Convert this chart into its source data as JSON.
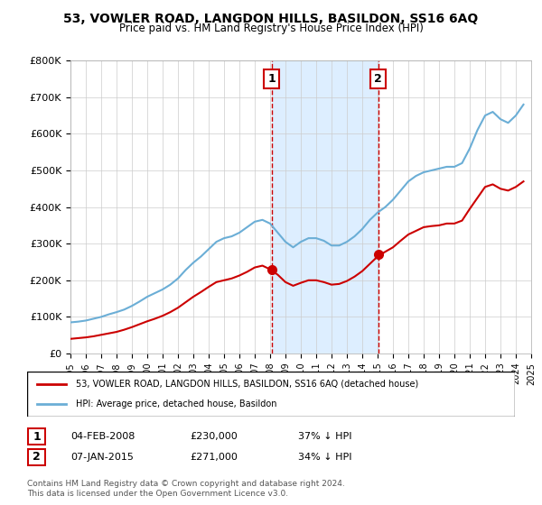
{
  "title": "53, VOWLER ROAD, LANGDON HILLS, BASILDON, SS16 6AQ",
  "subtitle": "Price paid vs. HM Land Registry's House Price Index (HPI)",
  "legend_line1": "53, VOWLER ROAD, LANGDON HILLS, BASILDON, SS16 6AQ (detached house)",
  "legend_line2": "HPI: Average price, detached house, Basildon",
  "transaction1": {
    "label": "1",
    "date": "04-FEB-2008",
    "price": "£230,000",
    "pct": "37% ↓ HPI"
  },
  "transaction2": {
    "label": "2",
    "date": "07-JAN-2015",
    "price": "£271,000",
    "pct": "34% ↓ HPI"
  },
  "footer": "Contains HM Land Registry data © Crown copyright and database right 2024.\nThis data is licensed under the Open Government Licence v3.0.",
  "hpi_color": "#6baed6",
  "price_color": "#cc0000",
  "shaded_color": "#ddeeff",
  "marker1_x": 2008.09,
  "marker2_x": 2015.03,
  "ylim": [
    0,
    800000
  ],
  "xlim_start": 1995,
  "xlim_end": 2025,
  "hpi_data": {
    "years": [
      1995,
      1995.5,
      1996,
      1996.5,
      1997,
      1997.5,
      1998,
      1998.5,
      1999,
      1999.5,
      2000,
      2000.5,
      2001,
      2001.5,
      2002,
      2002.5,
      2003,
      2003.5,
      2004,
      2004.5,
      2005,
      2005.5,
      2006,
      2006.5,
      2007,
      2007.5,
      2008,
      2008.5,
      2009,
      2009.5,
      2010,
      2010.5,
      2011,
      2011.5,
      2012,
      2012.5,
      2013,
      2013.5,
      2014,
      2014.5,
      2015,
      2015.5,
      2016,
      2016.5,
      2017,
      2017.5,
      2018,
      2018.5,
      2019,
      2019.5,
      2020,
      2020.5,
      2021,
      2021.5,
      2022,
      2022.5,
      2023,
      2023.5,
      2024,
      2024.5
    ],
    "values": [
      85000,
      87000,
      90000,
      95000,
      100000,
      107000,
      113000,
      120000,
      130000,
      142000,
      155000,
      165000,
      175000,
      188000,
      205000,
      228000,
      248000,
      265000,
      285000,
      305000,
      315000,
      320000,
      330000,
      345000,
      360000,
      365000,
      355000,
      330000,
      305000,
      290000,
      305000,
      315000,
      315000,
      308000,
      295000,
      295000,
      305000,
      320000,
      340000,
      365000,
      385000,
      400000,
      420000,
      445000,
      470000,
      485000,
      495000,
      500000,
      505000,
      510000,
      510000,
      520000,
      560000,
      610000,
      650000,
      660000,
      640000,
      630000,
      650000,
      680000
    ]
  },
  "price_data": {
    "years": [
      1995,
      1995.5,
      1996,
      1996.5,
      1997,
      1997.5,
      1998,
      1998.5,
      1999,
      1999.5,
      2000,
      2000.5,
      2001,
      2001.5,
      2002,
      2002.5,
      2003,
      2003.5,
      2004,
      2004.5,
      2005,
      2005.5,
      2006,
      2006.5,
      2007,
      2007.5,
      2008,
      2008.5,
      2009,
      2009.5,
      2010,
      2010.5,
      2011,
      2011.5,
      2012,
      2012.5,
      2013,
      2013.5,
      2014,
      2014.5,
      2015,
      2015.5,
      2016,
      2016.5,
      2017,
      2017.5,
      2018,
      2018.5,
      2019,
      2019.5,
      2020,
      2020.5,
      2021,
      2021.5,
      2022,
      2022.5,
      2023,
      2023.5,
      2024,
      2024.5
    ],
    "values": [
      40000,
      42000,
      44000,
      47000,
      51000,
      55000,
      59000,
      65000,
      72000,
      80000,
      88000,
      95000,
      103000,
      113000,
      125000,
      140000,
      155000,
      168000,
      182000,
      195000,
      200000,
      205000,
      213000,
      223000,
      235000,
      240000,
      230000,
      215000,
      195000,
      185000,
      193000,
      200000,
      200000,
      195000,
      188000,
      190000,
      198000,
      210000,
      225000,
      245000,
      265000,
      278000,
      290000,
      308000,
      325000,
      335000,
      345000,
      348000,
      350000,
      355000,
      355000,
      363000,
      395000,
      425000,
      455000,
      462000,
      450000,
      445000,
      455000,
      470000
    ]
  }
}
